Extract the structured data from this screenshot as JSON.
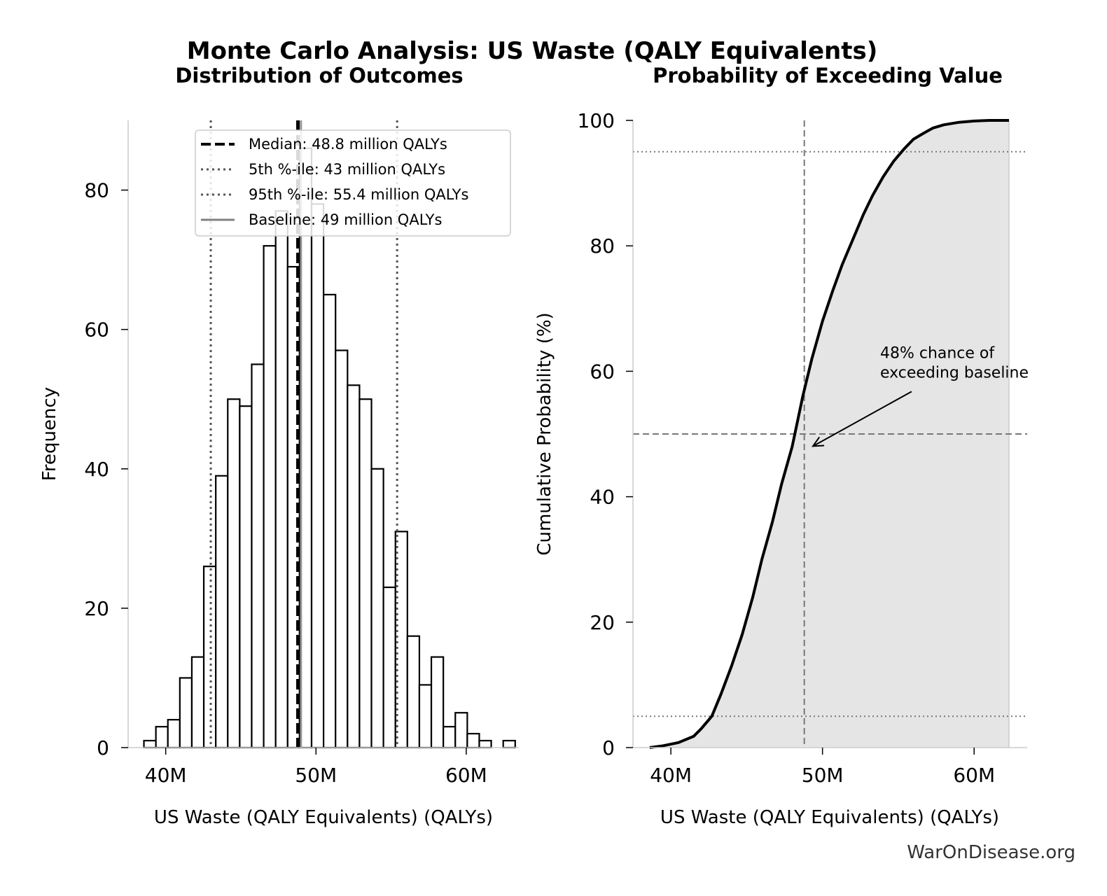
{
  "figure": {
    "title": "Monte Carlo Analysis: US Waste (QALY Equivalents)",
    "credit": "WarOnDisease.org"
  },
  "colors": {
    "bar_edge": "#000000",
    "bar_fill": "#ffffff",
    "median": "#000000",
    "percentile": "#555555",
    "baseline": "#808080",
    "cdf_line": "#000000",
    "cdf_fill": "#e5e5e5",
    "reference": "#777777"
  },
  "chart_data": [
    {
      "type": "bar",
      "subtype": "histogram",
      "title": "Distribution of Outcomes",
      "xlabel": "US Waste (QALY Equivalents) (QALYs)",
      "ylabel": "Frequency",
      "xlim": [
        37.5,
        63.5
      ],
      "ylim": [
        0,
        90
      ],
      "xticks": [
        40,
        50,
        60
      ],
      "xtick_labels": [
        "40M",
        "50M",
        "60M"
      ],
      "yticks": [
        0,
        20,
        40,
        60,
        80
      ],
      "ytick_labels": [
        "0",
        "20",
        "40",
        "60",
        "80"
      ],
      "bin_start": 38.55,
      "bin_width": 0.797,
      "values": [
        1,
        3,
        4,
        10,
        13,
        26,
        39,
        50,
        49,
        55,
        72,
        77,
        69,
        86,
        78,
        65,
        57,
        52,
        50,
        40,
        23,
        31,
        16,
        9,
        13,
        3,
        5,
        2,
        1,
        0,
        1
      ],
      "lines": [
        {
          "kind": "median",
          "x": 48.8,
          "label": "Median: 48.8 million QALYs"
        },
        {
          "kind": "p5",
          "x": 43.0,
          "label": "5th %-ile: 43 million QALYs"
        },
        {
          "kind": "p95",
          "x": 55.4,
          "label": "95th %-ile: 55.4 million QALYs"
        },
        {
          "kind": "baseline",
          "x": 49.0,
          "label": "Baseline: 49 million QALYs"
        }
      ],
      "legend_position": "top-right"
    },
    {
      "type": "area",
      "title": "Probability of Exceeding Value",
      "xlabel": "US Waste (QALY Equivalents) (QALYs)",
      "ylabel": "Cumulative Probability (%)",
      "xlim": [
        37.5,
        63.5
      ],
      "ylim": [
        0,
        100
      ],
      "xticks": [
        40,
        50,
        60
      ],
      "xtick_labels": [
        "40M",
        "50M",
        "60M"
      ],
      "yticks": [
        0,
        20,
        40,
        60,
        80,
        100
      ],
      "ytick_labels": [
        "0",
        "20",
        "40",
        "60",
        "80",
        "100"
      ],
      "x": [
        38.6,
        39.5,
        40.5,
        41.5,
        42.0,
        42.7,
        43.3,
        44.0,
        44.7,
        45.4,
        46.0,
        46.7,
        47.3,
        48.0,
        48.7,
        49.3,
        50.0,
        50.7,
        51.3,
        52.0,
        52.7,
        53.3,
        54.0,
        54.7,
        55.4,
        56.0,
        56.7,
        57.3,
        58.0,
        59.0,
        60.0,
        61.0,
        62.3
      ],
      "values": [
        0,
        0.3,
        0.8,
        1.8,
        3.0,
        5.0,
        8.5,
        13,
        18,
        24,
        30,
        36,
        42,
        48,
        56,
        62,
        68,
        73,
        77,
        81,
        85,
        88,
        91,
        93.5,
        95.5,
        97,
        98,
        98.8,
        99.3,
        99.7,
        99.9,
        100,
        100
      ],
      "hlines": [
        95,
        50,
        5
      ],
      "vline": 48.8,
      "annotation": {
        "text_lines": [
          "48% chance of",
          "exceeding baseline"
        ],
        "text_at": [
          53.8,
          59
        ],
        "arrow_to": [
          49.0,
          48.5
        ]
      }
    }
  ]
}
